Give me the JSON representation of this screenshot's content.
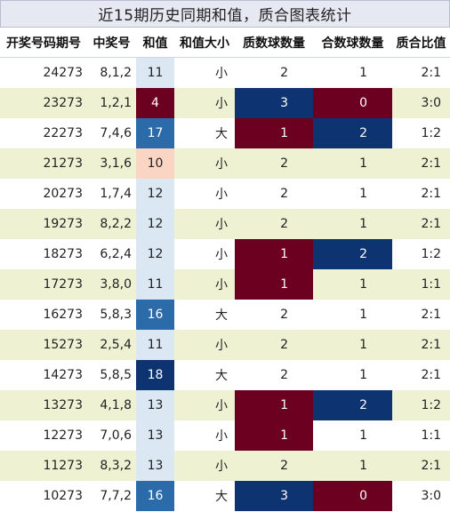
{
  "title": "近15期历史同期和值，质合图表统计",
  "columns": [
    "开奖号码期号",
    "中奖号",
    "和值",
    "和值大小",
    "质数球数量",
    "合数球数量",
    "质合比值"
  ],
  "colors": {
    "maroon": "#6b0021",
    "navy": "#0d3471",
    "blue": "#2b6ba9",
    "lightblue": "#dbe8f4",
    "peach": "#fbd5c3",
    "rowAlt": "#eff2d2"
  },
  "rows": [
    {
      "issue": "24273",
      "number": "8,1,2",
      "sum": "11",
      "size": "小",
      "prime": "2",
      "composite": "1",
      "ratio": "2:1",
      "sumColor": "lightblue",
      "primeColor": "",
      "compColor": ""
    },
    {
      "issue": "23273",
      "number": "1,2,1",
      "sum": "4",
      "size": "小",
      "prime": "3",
      "composite": "0",
      "ratio": "3:0",
      "sumColor": "maroon",
      "primeColor": "navy",
      "compColor": "maroon"
    },
    {
      "issue": "22273",
      "number": "7,4,6",
      "sum": "17",
      "size": "大",
      "prime": "1",
      "composite": "2",
      "ratio": "1:2",
      "sumColor": "blue",
      "primeColor": "maroon",
      "compColor": "navy"
    },
    {
      "issue": "21273",
      "number": "3,1,6",
      "sum": "10",
      "size": "小",
      "prime": "2",
      "composite": "1",
      "ratio": "2:1",
      "sumColor": "peach",
      "primeColor": "",
      "compColor": ""
    },
    {
      "issue": "20273",
      "number": "1,7,4",
      "sum": "12",
      "size": "小",
      "prime": "2",
      "composite": "1",
      "ratio": "2:1",
      "sumColor": "lightblue",
      "primeColor": "",
      "compColor": ""
    },
    {
      "issue": "19273",
      "number": "8,2,2",
      "sum": "12",
      "size": "小",
      "prime": "2",
      "composite": "1",
      "ratio": "2:1",
      "sumColor": "lightblue",
      "primeColor": "",
      "compColor": ""
    },
    {
      "issue": "18273",
      "number": "6,2,4",
      "sum": "12",
      "size": "小",
      "prime": "1",
      "composite": "2",
      "ratio": "1:2",
      "sumColor": "lightblue",
      "primeColor": "maroon",
      "compColor": "navy"
    },
    {
      "issue": "17273",
      "number": "3,8,0",
      "sum": "11",
      "size": "小",
      "prime": "1",
      "composite": "1",
      "ratio": "1:1",
      "sumColor": "lightblue",
      "primeColor": "maroon",
      "compColor": ""
    },
    {
      "issue": "16273",
      "number": "5,8,3",
      "sum": "16",
      "size": "大",
      "prime": "2",
      "composite": "1",
      "ratio": "2:1",
      "sumColor": "blue",
      "primeColor": "",
      "compColor": ""
    },
    {
      "issue": "15273",
      "number": "2,5,4",
      "sum": "11",
      "size": "小",
      "prime": "2",
      "composite": "1",
      "ratio": "2:1",
      "sumColor": "lightblue",
      "primeColor": "",
      "compColor": ""
    },
    {
      "issue": "14273",
      "number": "5,8,5",
      "sum": "18",
      "size": "大",
      "prime": "2",
      "composite": "1",
      "ratio": "2:1",
      "sumColor": "navy",
      "primeColor": "",
      "compColor": ""
    },
    {
      "issue": "13273",
      "number": "4,1,8",
      "sum": "13",
      "size": "小",
      "prime": "1",
      "composite": "2",
      "ratio": "1:2",
      "sumColor": "lightblue",
      "primeColor": "maroon",
      "compColor": "navy"
    },
    {
      "issue": "12273",
      "number": "7,0,6",
      "sum": "13",
      "size": "小",
      "prime": "1",
      "composite": "1",
      "ratio": "1:1",
      "sumColor": "lightblue",
      "primeColor": "maroon",
      "compColor": ""
    },
    {
      "issue": "11273",
      "number": "8,3,2",
      "sum": "13",
      "size": "小",
      "prime": "2",
      "composite": "1",
      "ratio": "2:1",
      "sumColor": "lightblue",
      "primeColor": "",
      "compColor": ""
    },
    {
      "issue": "10273",
      "number": "7,7,2",
      "sum": "16",
      "size": "大",
      "prime": "3",
      "composite": "0",
      "ratio": "3:0",
      "sumColor": "blue",
      "primeColor": "navy",
      "compColor": "maroon"
    }
  ]
}
